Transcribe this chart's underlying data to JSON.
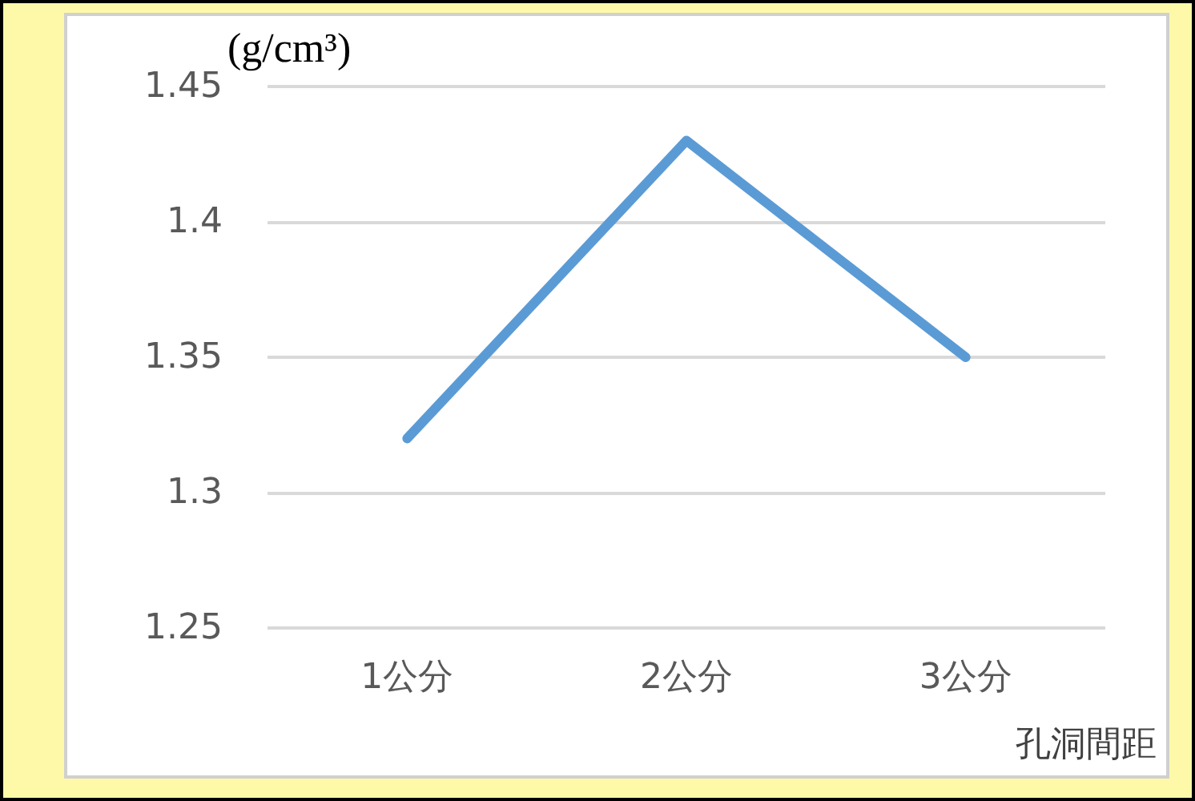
{
  "chart_data": {
    "type": "line",
    "ylabel": "(g/cm³)",
    "xlabel": "孔洞間距",
    "categories": [
      "1公分",
      "2公分",
      "3公分"
    ],
    "series": [
      {
        "color": "#5b9bd5",
        "values": [
          1.32,
          1.43,
          1.35
        ]
      }
    ],
    "ylim": [
      1.25,
      1.45
    ],
    "yticks": [
      1.25,
      1.3,
      1.35,
      1.4,
      1.45
    ],
    "grid": "y",
    "marker": "none",
    "line_style": "solid"
  }
}
